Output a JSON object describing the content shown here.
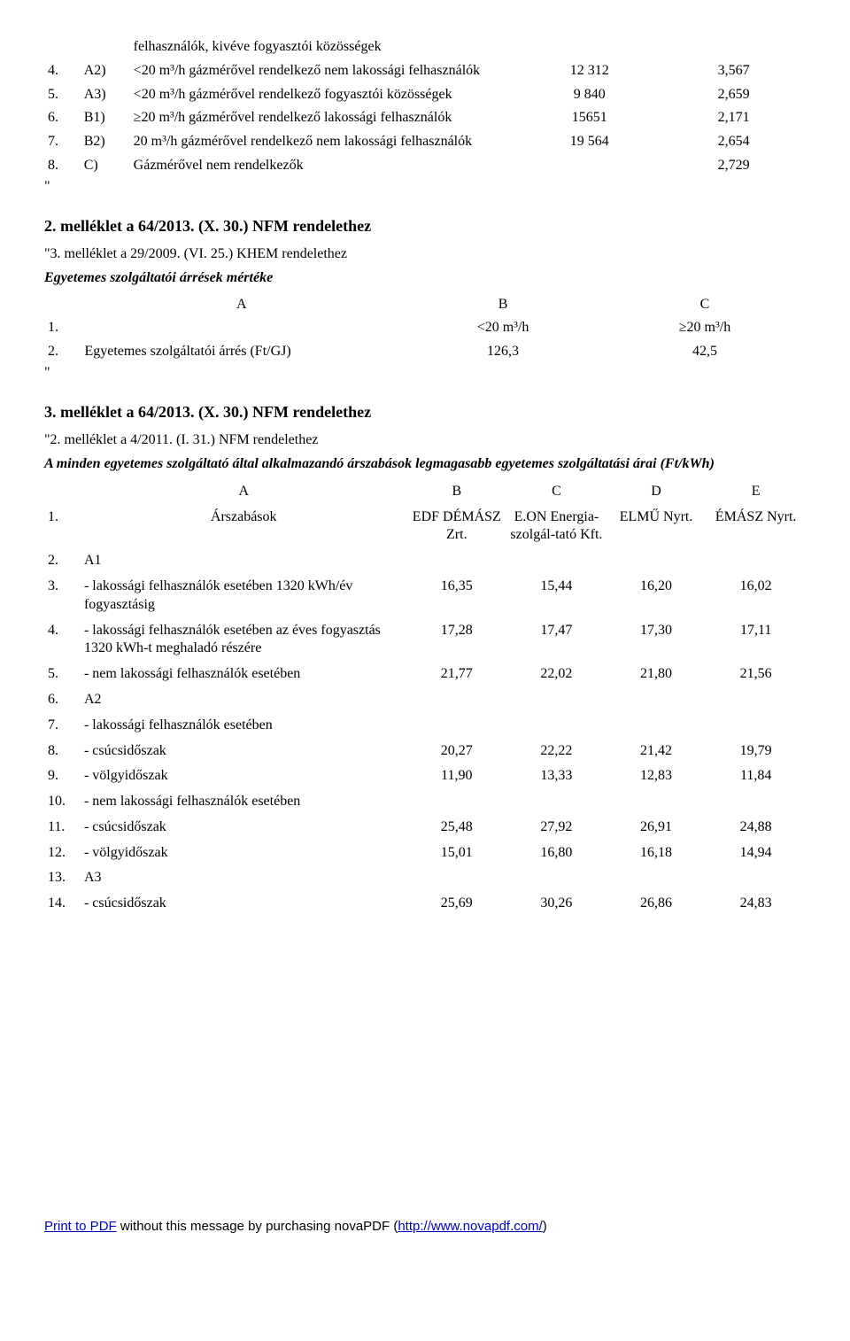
{
  "table1": {
    "rows": [
      {
        "n": "",
        "code": "",
        "desc": "felhasználók, kivéve fogyasztói közösségek",
        "v1": "",
        "v2": ""
      },
      {
        "n": "4.",
        "code": "A2)",
        "desc": "<20 m³/h gázmérővel rendelkező nem lakossági felhasználók",
        "v1": "12 312",
        "v2": "3,567"
      },
      {
        "n": "5.",
        "code": "A3)",
        "desc": "<20 m³/h gázmérővel rendelkező fogyasztói közösségek",
        "v1": "9 840",
        "v2": "2,659"
      },
      {
        "n": "6.",
        "code": "B1)",
        "desc": "≥20 m³/h gázmérővel rendelkező lakossági felhasználók",
        "v1": "15651",
        "v2": "2,171"
      },
      {
        "n": "7.",
        "code": "B2)",
        "desc": "20 m³/h gázmérővel rendelkező nem lakossági felhasználók",
        "v1": "19 564",
        "v2": "2,654"
      },
      {
        "n": "8.",
        "code": "C)",
        "desc": "Gázmérővel nem rendelkezők",
        "v1": "",
        "v2": "2,729"
      }
    ],
    "end": "\""
  },
  "section2": {
    "title": "2. melléklet a 64/2013. (X. 30.) NFM rendelethez",
    "sub1": "\"3. melléklet a 29/2009. (VI. 25.) KHEM rendelethez",
    "sub2": "Egyetemes szolgáltatói árrések mértéke",
    "head": {
      "a": "A",
      "b": "B",
      "c": "C"
    },
    "r1": {
      "n": "1.",
      "b": "<20 m³/h",
      "c": "≥20 m³/h"
    },
    "r2": {
      "n": "2.",
      "a": "Egyetemes szolgáltatói árrés (Ft/GJ)",
      "b": "126,3",
      "c": "42,5"
    },
    "end": "\""
  },
  "section3": {
    "title": "3. melléklet a 64/2013. (X. 30.) NFM rendelethez",
    "sub1": "\"2. melléklet a 4/2011. (I. 31.) NFM rendelethez",
    "sub2": "A minden egyetemes szolgáltató által alkalmazandó árszabások legmagasabb egyetemes szolgáltatási árai (Ft/kWh)",
    "head": {
      "a": "A",
      "b": "B",
      "c": "C",
      "d": "D",
      "e": "E"
    },
    "r1": {
      "n": "1.",
      "a": "Árszabások",
      "b": "EDF DÉMÁSZ Zrt.",
      "c": "E.ON Energia-szolgál-tató Kft.",
      "d": "ELMŰ Nyrt.",
      "e": "ÉMÁSZ Nyrt."
    },
    "rows": [
      {
        "n": "2.",
        "a": "A1",
        "b": "",
        "c": "",
        "d": "",
        "e": ""
      },
      {
        "n": "3.",
        "a": "- lakossági felhasználók esetében 1320 kWh/év fogyasztásig",
        "b": "16,35",
        "c": "15,44",
        "d": "16,20",
        "e": "16,02"
      },
      {
        "n": "4.",
        "a": "- lakossági felhasználók esetében az éves fogyasztás 1320 kWh-t meghaladó részére",
        "b": "17,28",
        "c": "17,47",
        "d": "17,30",
        "e": "17,11"
      },
      {
        "n": "5.",
        "a": "- nem lakossági felhasználók esetében",
        "b": "21,77",
        "c": "22,02",
        "d": "21,80",
        "e": "21,56"
      },
      {
        "n": "6.",
        "a": "A2",
        "b": "",
        "c": "",
        "d": "",
        "e": ""
      },
      {
        "n": "7.",
        "a": "- lakossági felhasználók esetében",
        "b": "",
        "c": "",
        "d": "",
        "e": ""
      },
      {
        "n": "8.",
        "a": "- csúcsidőszak",
        "b": "20,27",
        "c": "22,22",
        "d": "21,42",
        "e": "19,79"
      },
      {
        "n": "9.",
        "a": "- völgyidőszak",
        "b": "11,90",
        "c": "13,33",
        "d": "12,83",
        "e": "11,84"
      },
      {
        "n": "10.",
        "a": "- nem lakossági felhasználók esetében",
        "b": "",
        "c": "",
        "d": "",
        "e": ""
      },
      {
        "n": "11.",
        "a": "- csúcsidőszak",
        "b": "25,48",
        "c": "27,92",
        "d": "26,91",
        "e": "24,88"
      },
      {
        "n": "12.",
        "a": "- völgyidőszak",
        "b": "15,01",
        "c": "16,80",
        "d": "16,18",
        "e": "14,94"
      },
      {
        "n": "13.",
        "a": "A3",
        "b": "",
        "c": "",
        "d": "",
        "e": ""
      },
      {
        "n": "14.",
        "a": "- csúcsidőszak",
        "b": "25,69",
        "c": "30,26",
        "d": "26,86",
        "e": "24,83"
      }
    ]
  },
  "footer": {
    "t1": "Print to PDF",
    "t2": " without this message by purchasing novaPDF (",
    "t3": "http://www.novapdf.com/",
    "t4": ")"
  }
}
